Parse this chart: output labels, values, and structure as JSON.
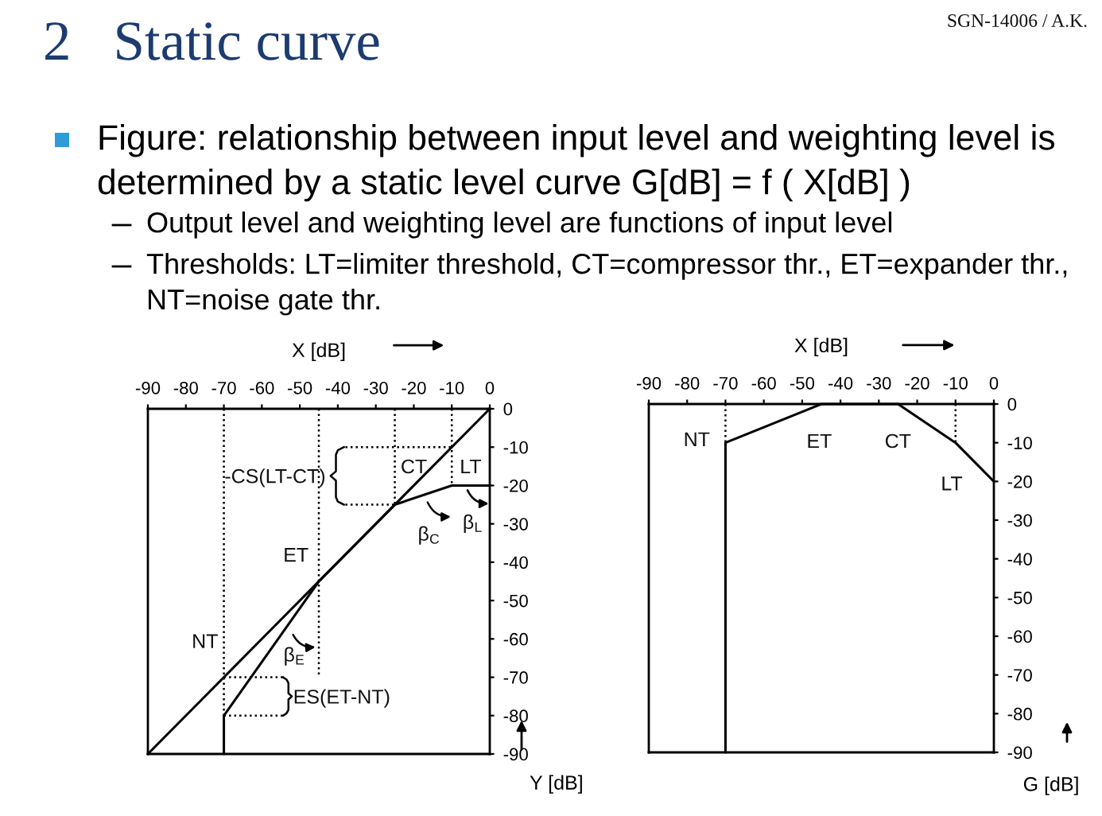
{
  "chart_data": [
    {
      "type": "other",
      "title": "2   Static curve",
      "subtitle": "SGN-14006 / A.K.",
      "annotations": [
        "Figure: relationship between input level and weighting level is\ndetermined by a static level curve G[dB] = f ( X[dB] )",
        "Output level and weighting level are functions of input level",
        "Thresholds: LT=limiter threshold, CT=compressor thr., ET=expander thr.,\nNT=noise gate thr."
      ]
    },
    {
      "type": "line",
      "xlabel": "X [dB]",
      "ylabel": "Y [dB]",
      "xlim": [
        -90,
        0
      ],
      "ylim": [
        -90,
        0
      ],
      "xticks": [
        -90,
        -80,
        -70,
        -60,
        -50,
        -40,
        -30,
        -20,
        -10,
        0
      ],
      "yticks": [
        0,
        -10,
        -20,
        -30,
        -40,
        -50,
        -60,
        -70,
        -80,
        -90
      ],
      "line_style": "solid",
      "series": [
        {
          "color": "#000000",
          "x": [
            -90,
            0
          ],
          "values": [
            -90,
            0
          ]
        },
        {
          "color": "#000000",
          "x": [
            -70,
            -70,
            -45,
            -25,
            -10,
            0
          ],
          "values": [
            -90,
            -80,
            -45,
            -25,
            -20,
            -20
          ]
        },
        {
          "color": "#000000",
          "line_style": "dotted",
          "x": [
            -70,
            -70
          ],
          "values": [
            0,
            -80
          ]
        },
        {
          "color": "#000000",
          "line_style": "dotted",
          "x": [
            -45,
            -45
          ],
          "values": [
            0,
            -70
          ]
        },
        {
          "color": "#000000",
          "line_style": "dotted",
          "x": [
            -25,
            -25
          ],
          "values": [
            0,
            -25
          ]
        },
        {
          "color": "#000000",
          "line_style": "dotted",
          "x": [
            -10,
            -10
          ],
          "values": [
            0,
            -20
          ]
        },
        {
          "color": "#000000",
          "line_style": "dotted",
          "x": [
            -38,
            -10
          ],
          "values": [
            -10,
            -10
          ]
        },
        {
          "color": "#000000",
          "line_style": "dotted",
          "x": [
            -38,
            -25
          ],
          "values": [
            -25,
            -25
          ]
        },
        {
          "color": "#000000",
          "line_style": "dotted",
          "x": [
            -70,
            -54
          ],
          "values": [
            -70,
            -70
          ]
        },
        {
          "color": "#000000",
          "line_style": "dotted",
          "x": [
            -70,
            -54
          ],
          "values": [
            -80,
            -80
          ]
        }
      ],
      "annotations": [
        "CT",
        "LT",
        "-CS(LT-CT)",
        "β$_{C}$",
        "β$_{L}$",
        "ET",
        "NT",
        "β$_{E}$",
        "ES(ET-NT)"
      ]
    },
    {
      "type": "line",
      "xlabel": "X [dB]",
      "ylabel": "G [dB]",
      "xlim": [
        -90,
        0
      ],
      "ylim": [
        -90,
        0
      ],
      "xticks": [
        -90,
        -80,
        -70,
        -60,
        -50,
        -40,
        -30,
        -20,
        -10,
        0
      ],
      "yticks": [
        0,
        -10,
        -20,
        -30,
        -40,
        -50,
        -60,
        -70,
        -80,
        -90
      ],
      "line_style": "solid",
      "series": [
        {
          "color": "#000000",
          "x": [
            -70,
            -70,
            -45,
            -25,
            -10,
            0
          ],
          "values": [
            -90,
            -10,
            0,
            0,
            -10,
            -20
          ]
        },
        {
          "color": "#000000",
          "line_style": "dotted",
          "x": [
            -70,
            -70
          ],
          "values": [
            0,
            -10
          ]
        },
        {
          "color": "#000000",
          "line_style": "dotted",
          "x": [
            -10,
            -10
          ],
          "values": [
            0,
            -10
          ]
        }
      ],
      "annotations": [
        "NT",
        "ET",
        "CT",
        "LT"
      ]
    }
  ]
}
